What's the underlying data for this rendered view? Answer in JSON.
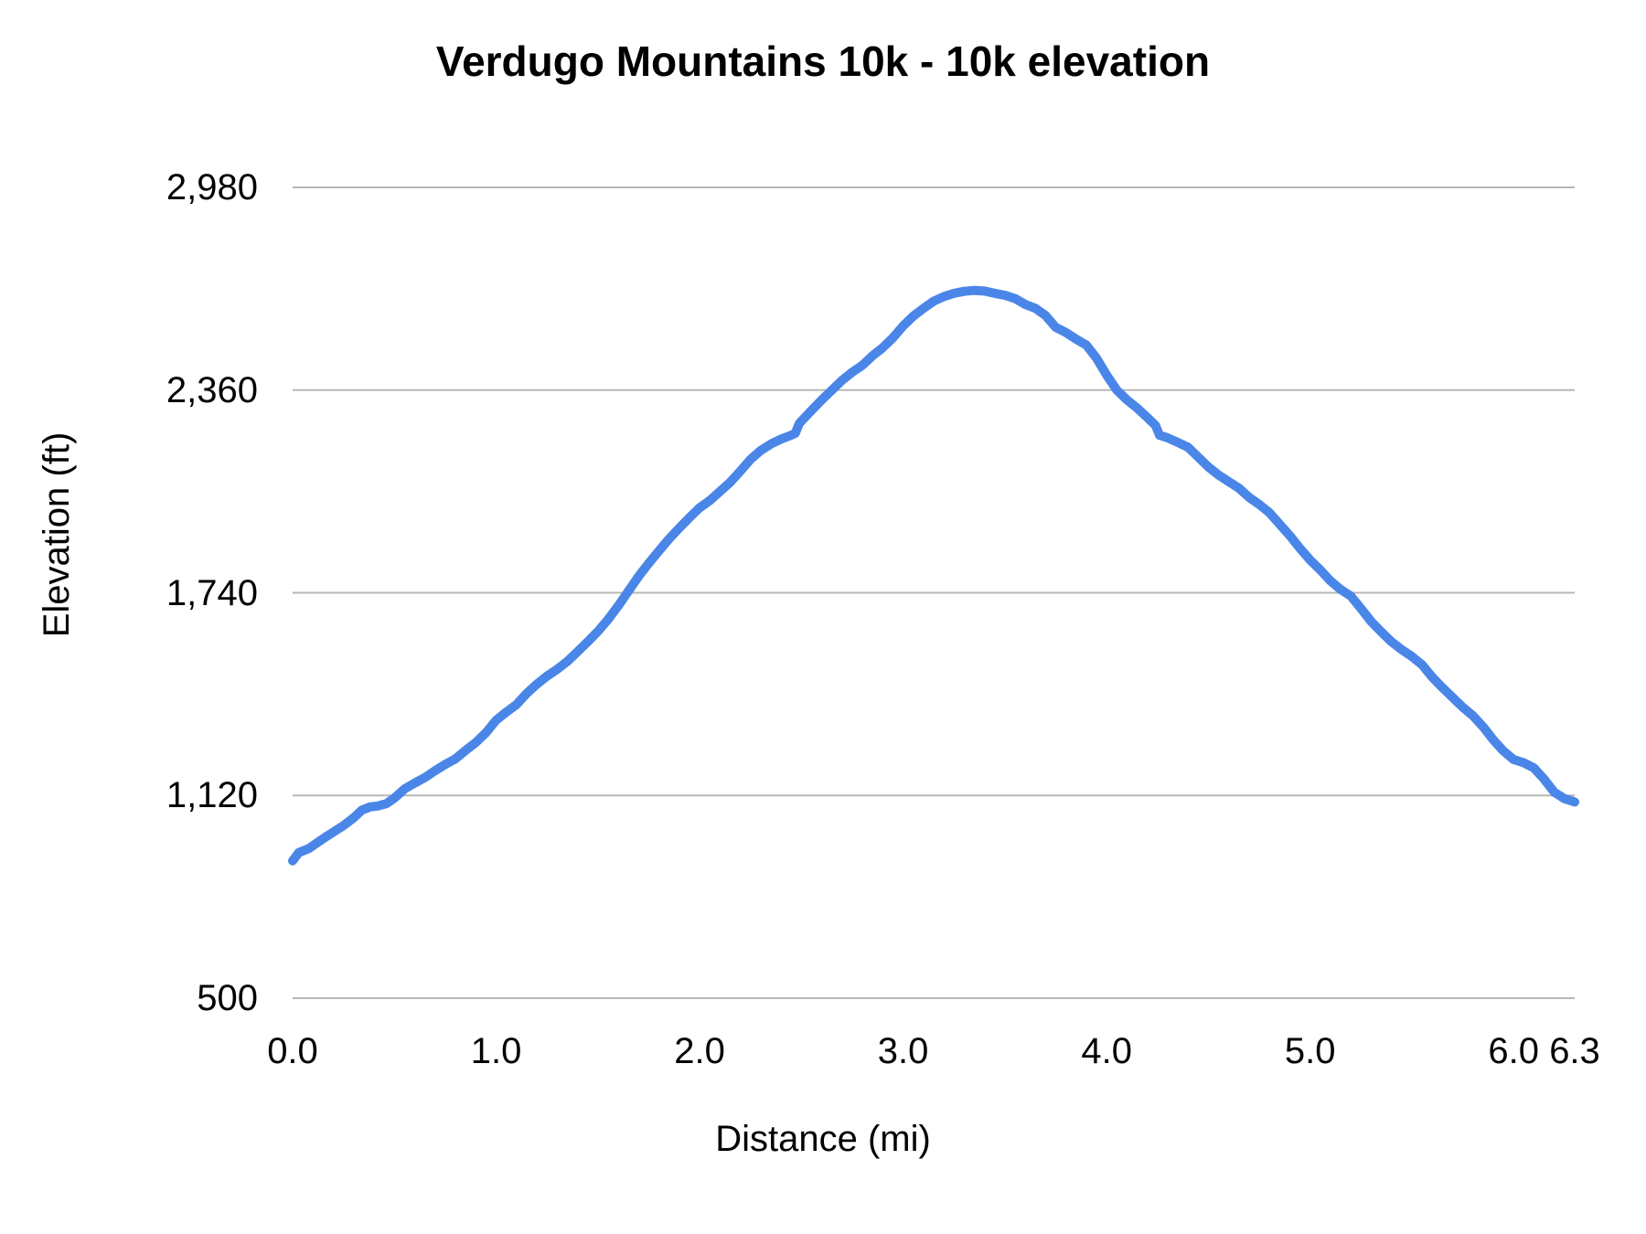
{
  "chart_data": {
    "type": "line",
    "title": "Verdugo Mountains 10k - 10k elevation",
    "xlabel": "Distance (mi)",
    "ylabel": "Elevation (ft)",
    "xlim": [
      0,
      6.3
    ],
    "ylim": [
      500,
      2980
    ],
    "x_ticks": [
      0.0,
      1.0,
      2.0,
      3.0,
      4.0,
      5.0,
      6.0,
      6.3
    ],
    "x_tick_labels": [
      "0.0",
      "1.0",
      "2.0",
      "3.0",
      "4.0",
      "5.0",
      "6.0",
      "6.3"
    ],
    "y_ticks": [
      500,
      1120,
      1740,
      2360,
      2980
    ],
    "y_tick_labels": [
      "500",
      "1,120",
      "1,740",
      "2,360",
      "2,980"
    ],
    "grid": "horizontal-only",
    "legend": "none",
    "line_color": "#4a86e8",
    "gridline_color": "#b7b7b7",
    "series": [
      {
        "name": "elevation",
        "points": [
          [
            0.0,
            920
          ],
          [
            0.03,
            945
          ],
          [
            0.08,
            958
          ],
          [
            0.12,
            975
          ],
          [
            0.16,
            992
          ],
          [
            0.2,
            1008
          ],
          [
            0.25,
            1028
          ],
          [
            0.3,
            1052
          ],
          [
            0.34,
            1075
          ],
          [
            0.38,
            1085
          ],
          [
            0.42,
            1088
          ],
          [
            0.46,
            1095
          ],
          [
            0.5,
            1112
          ],
          [
            0.55,
            1140
          ],
          [
            0.6,
            1158
          ],
          [
            0.65,
            1175
          ],
          [
            0.7,
            1196
          ],
          [
            0.75,
            1215
          ],
          [
            0.8,
            1232
          ],
          [
            0.85,
            1258
          ],
          [
            0.9,
            1282
          ],
          [
            0.95,
            1312
          ],
          [
            1.0,
            1350
          ],
          [
            1.05,
            1375
          ],
          [
            1.1,
            1398
          ],
          [
            1.15,
            1432
          ],
          [
            1.2,
            1460
          ],
          [
            1.25,
            1485
          ],
          [
            1.3,
            1506
          ],
          [
            1.35,
            1530
          ],
          [
            1.4,
            1560
          ],
          [
            1.45,
            1590
          ],
          [
            1.5,
            1622
          ],
          [
            1.55,
            1658
          ],
          [
            1.6,
            1700
          ],
          [
            1.65,
            1745
          ],
          [
            1.7,
            1790
          ],
          [
            1.75,
            1830
          ],
          [
            1.8,
            1868
          ],
          [
            1.85,
            1905
          ],
          [
            1.9,
            1938
          ],
          [
            1.95,
            1970
          ],
          [
            2.0,
            2000
          ],
          [
            2.05,
            2022
          ],
          [
            2.1,
            2050
          ],
          [
            2.15,
            2078
          ],
          [
            2.2,
            2112
          ],
          [
            2.25,
            2148
          ],
          [
            2.3,
            2175
          ],
          [
            2.35,
            2195
          ],
          [
            2.4,
            2210
          ],
          [
            2.45,
            2222
          ],
          [
            2.47,
            2228
          ],
          [
            2.49,
            2258
          ],
          [
            2.55,
            2298
          ],
          [
            2.6,
            2330
          ],
          [
            2.65,
            2360
          ],
          [
            2.7,
            2390
          ],
          [
            2.75,
            2415
          ],
          [
            2.8,
            2436
          ],
          [
            2.85,
            2465
          ],
          [
            2.9,
            2490
          ],
          [
            2.95,
            2520
          ],
          [
            3.0,
            2556
          ],
          [
            3.05,
            2586
          ],
          [
            3.1,
            2610
          ],
          [
            3.15,
            2632
          ],
          [
            3.2,
            2646
          ],
          [
            3.25,
            2656
          ],
          [
            3.3,
            2662
          ],
          [
            3.35,
            2665
          ],
          [
            3.4,
            2663
          ],
          [
            3.45,
            2656
          ],
          [
            3.5,
            2650
          ],
          [
            3.55,
            2640
          ],
          [
            3.6,
            2622
          ],
          [
            3.65,
            2610
          ],
          [
            3.7,
            2588
          ],
          [
            3.75,
            2552
          ],
          [
            3.8,
            2536
          ],
          [
            3.85,
            2516
          ],
          [
            3.9,
            2498
          ],
          [
            3.95,
            2458
          ],
          [
            4.0,
            2406
          ],
          [
            4.05,
            2360
          ],
          [
            4.1,
            2330
          ],
          [
            4.15,
            2305
          ],
          [
            4.2,
            2276
          ],
          [
            4.24,
            2252
          ],
          [
            4.26,
            2222
          ],
          [
            4.3,
            2214
          ],
          [
            4.35,
            2200
          ],
          [
            4.4,
            2185
          ],
          [
            4.45,
            2155
          ],
          [
            4.5,
            2125
          ],
          [
            4.55,
            2100
          ],
          [
            4.6,
            2080
          ],
          [
            4.65,
            2060
          ],
          [
            4.7,
            2032
          ],
          [
            4.75,
            2010
          ],
          [
            4.8,
            1985
          ],
          [
            4.85,
            1950
          ],
          [
            4.9,
            1915
          ],
          [
            4.95,
            1876
          ],
          [
            5.0,
            1840
          ],
          [
            5.05,
            1810
          ],
          [
            5.1,
            1776
          ],
          [
            5.15,
            1750
          ],
          [
            5.2,
            1730
          ],
          [
            5.25,
            1692
          ],
          [
            5.3,
            1652
          ],
          [
            5.35,
            1620
          ],
          [
            5.4,
            1590
          ],
          [
            5.45,
            1566
          ],
          [
            5.5,
            1545
          ],
          [
            5.55,
            1520
          ],
          [
            5.6,
            1482
          ],
          [
            5.65,
            1450
          ],
          [
            5.7,
            1420
          ],
          [
            5.75,
            1390
          ],
          [
            5.8,
            1364
          ],
          [
            5.85,
            1330
          ],
          [
            5.9,
            1290
          ],
          [
            5.95,
            1256
          ],
          [
            6.0,
            1230
          ],
          [
            6.05,
            1220
          ],
          [
            6.1,
            1204
          ],
          [
            6.15,
            1170
          ],
          [
            6.2,
            1130
          ],
          [
            6.25,
            1110
          ],
          [
            6.3,
            1100
          ]
        ]
      }
    ]
  }
}
